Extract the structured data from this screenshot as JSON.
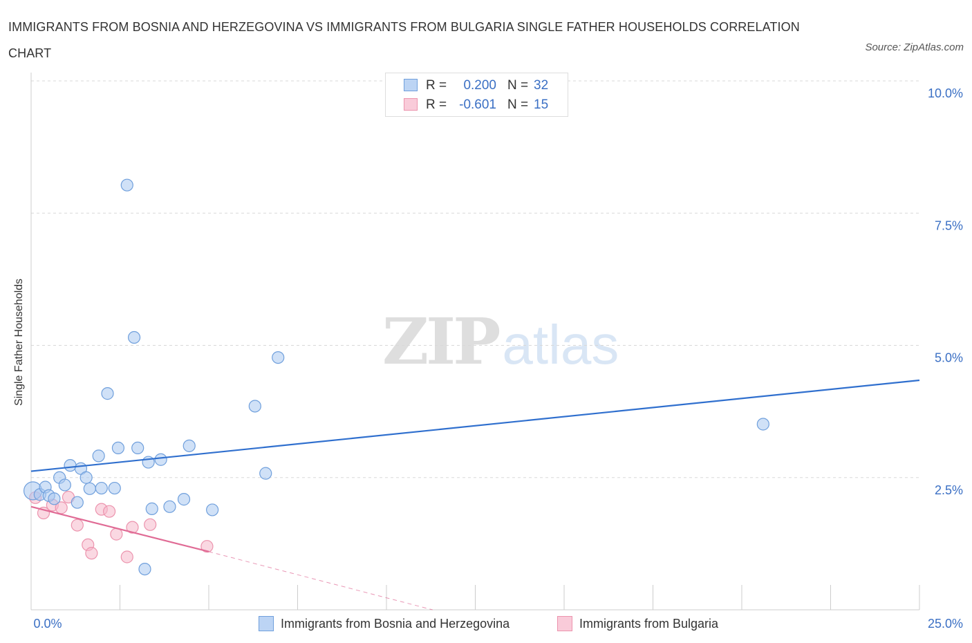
{
  "header": {
    "title": "IMMIGRANTS FROM BOSNIA AND HERZEGOVINA VS IMMIGRANTS FROM BULGARIA SINGLE FATHER HOUSEHOLDS CORRELATION CHART",
    "source": "Source: ZipAtlas.com"
  },
  "watermark": {
    "zip": "ZIP",
    "atlas": "atlas"
  },
  "legend": {
    "rows": [
      {
        "r_label": "R =",
        "r_value": "0.200",
        "n_label": "N =",
        "n_value": "32"
      },
      {
        "r_label": "R =",
        "r_value": "-0.601",
        "n_label": "N =",
        "n_value": "15"
      }
    ]
  },
  "colors": {
    "bosnia_fill": "#a9c8f0",
    "bosnia_stroke": "#6f9fdc",
    "bosnia_line": "#2f6fce",
    "bulgaria_fill": "#f6b8cb",
    "bulgaria_stroke": "#ec93ad",
    "bulgaria_line": "#e06b95",
    "grid": "#d8d8d8",
    "tick_text": "#3a6fc4"
  },
  "chart_data": {
    "type": "scatter",
    "title": "IMMIGRANTS FROM BOSNIA AND HERZEGOVINA VS IMMIGRANTS FROM BULGARIA SINGLE FATHER HOUSEHOLDS CORRELATION CHART",
    "xlabel": "",
    "ylabel": "Single Father Households",
    "xlim": [
      0,
      25
    ],
    "ylim": [
      0,
      10
    ],
    "x_tick_labels": [
      "0.0%",
      "25.0%"
    ],
    "y_ticks": [
      {
        "value": 10,
        "label": "10.0%"
      },
      {
        "value": 7.5,
        "label": "7.5%"
      },
      {
        "value": 5,
        "label": "5.0%"
      },
      {
        "value": 2.5,
        "label": "2.5%"
      }
    ],
    "grid": true,
    "series": [
      {
        "name": "Immigrants from Bosnia and Herzegovina",
        "r": 0.2,
        "n": 32,
        "trend": {
          "x0": 0,
          "y0": 2.62,
          "x1": 25,
          "y1": 4.34
        },
        "points": [
          {
            "x": 0.05,
            "y": 2.25,
            "big": true
          },
          {
            "x": 0.25,
            "y": 2.18
          },
          {
            "x": 0.4,
            "y": 2.32
          },
          {
            "x": 0.5,
            "y": 2.16
          },
          {
            "x": 0.65,
            "y": 2.1
          },
          {
            "x": 0.8,
            "y": 2.5
          },
          {
            "x": 0.95,
            "y": 2.36
          },
          {
            "x": 1.1,
            "y": 2.73
          },
          {
            "x": 1.3,
            "y": 2.03
          },
          {
            "x": 1.4,
            "y": 2.67
          },
          {
            "x": 1.55,
            "y": 2.5
          },
          {
            "x": 1.65,
            "y": 2.29
          },
          {
            "x": 1.9,
            "y": 2.91
          },
          {
            "x": 1.98,
            "y": 2.3
          },
          {
            "x": 2.15,
            "y": 4.09
          },
          {
            "x": 2.35,
            "y": 2.3
          },
          {
            "x": 2.45,
            "y": 3.06
          },
          {
            "x": 2.7,
            "y": 8.03
          },
          {
            "x": 2.9,
            "y": 5.15
          },
          {
            "x": 3.0,
            "y": 3.06
          },
          {
            "x": 3.2,
            "y": 0.77
          },
          {
            "x": 3.3,
            "y": 2.79
          },
          {
            "x": 3.4,
            "y": 1.91
          },
          {
            "x": 3.65,
            "y": 2.84
          },
          {
            "x": 3.9,
            "y": 1.95
          },
          {
            "x": 4.3,
            "y": 2.09
          },
          {
            "x": 4.45,
            "y": 3.1
          },
          {
            "x": 5.1,
            "y": 1.89
          },
          {
            "x": 6.3,
            "y": 3.85
          },
          {
            "x": 6.6,
            "y": 2.58
          },
          {
            "x": 6.95,
            "y": 4.77
          },
          {
            "x": 20.6,
            "y": 3.51
          }
        ]
      },
      {
        "name": "Immigrants from Bulgaria",
        "r": -0.601,
        "n": 15,
        "trend": {
          "x0": 0,
          "y0": 1.95,
          "x1": 5.0,
          "y1": 1.1
        },
        "trend_extension": {
          "x0": 5.0,
          "y0": 1.1,
          "x1": 11.3,
          "y1": 0.0
        },
        "points": [
          {
            "x": 0.12,
            "y": 2.12
          },
          {
            "x": 0.35,
            "y": 1.83
          },
          {
            "x": 0.6,
            "y": 1.98
          },
          {
            "x": 0.85,
            "y": 1.93
          },
          {
            "x": 1.05,
            "y": 2.13
          },
          {
            "x": 1.3,
            "y": 1.6
          },
          {
            "x": 1.6,
            "y": 1.23
          },
          {
            "x": 1.7,
            "y": 1.07
          },
          {
            "x": 1.98,
            "y": 1.9
          },
          {
            "x": 2.2,
            "y": 1.86
          },
          {
            "x": 2.4,
            "y": 1.43
          },
          {
            "x": 2.7,
            "y": 1.0
          },
          {
            "x": 2.85,
            "y": 1.56
          },
          {
            "x": 3.35,
            "y": 1.61
          },
          {
            "x": 4.95,
            "y": 1.2
          }
        ]
      }
    ]
  }
}
